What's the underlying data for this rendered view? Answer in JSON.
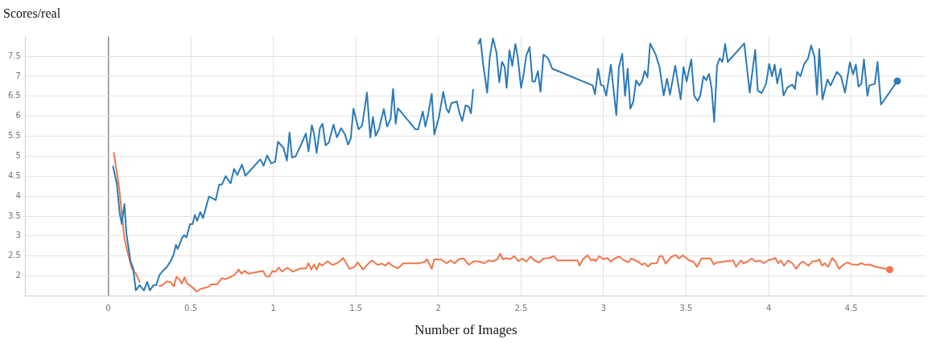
{
  "chart_data": {
    "type": "line",
    "title": "Scores/real",
    "xlabel": "Number of Images",
    "xlim": [
      -0.5,
      4.95
    ],
    "xticks": [
      0,
      0.5,
      1,
      1.5,
      2,
      2.5,
      3,
      3.5,
      4,
      4.5
    ],
    "ylim": [
      1.51,
      8.0
    ],
    "yticks": [
      2,
      2.5,
      3,
      3.5,
      4,
      4.5,
      5,
      5.5,
      6,
      6.5,
      7,
      7.5
    ],
    "grid": true,
    "legend": false,
    "marker": "none",
    "line_style": "solid",
    "series": [
      {
        "color": "#2a7ab9",
        "x": [
          0.028,
          0.052,
          0.069,
          0.082,
          0.098,
          0.11,
          0.134,
          0.151,
          0.167,
          0.19,
          0.216,
          0.236,
          0.252,
          0.274,
          0.29,
          0.311,
          0.331,
          0.356,
          0.38,
          0.397,
          0.41,
          0.421,
          0.446,
          0.459,
          0.474,
          0.495,
          0.511,
          0.525,
          0.539,
          0.557,
          0.574,
          0.61,
          0.639,
          0.651,
          0.672,
          0.689,
          0.711,
          0.741,
          0.762,
          0.782,
          0.81,
          0.831,
          0.921,
          0.941,
          0.962,
          0.987,
          1.011,
          1.028,
          1.061,
          1.082,
          1.098,
          1.113,
          1.134,
          1.167,
          1.197,
          1.213,
          1.233,
          1.246,
          1.262,
          1.282,
          1.298,
          1.316,
          1.336,
          1.364,
          1.385,
          1.41,
          1.434,
          1.452,
          1.469,
          1.485,
          1.516,
          1.538,
          1.567,
          1.587,
          1.603,
          1.62,
          1.639,
          1.669,
          1.689,
          1.71,
          1.725,
          1.741,
          1.754,
          1.861,
          1.877,
          1.905,
          1.921,
          1.938,
          1.959,
          1.975,
          2.003,
          2.029,
          2.049,
          2.062,
          2.079,
          2.098,
          2.111,
          2.128,
          2.144,
          2.164,
          2.184,
          2.197,
          2.21,
          2.221,
          2.241,
          2.254,
          2.27,
          2.295,
          2.311,
          2.33,
          2.352,
          2.368,
          2.385,
          2.401,
          2.413,
          2.43,
          2.447,
          2.466,
          2.48,
          2.5,
          2.516,
          2.532,
          2.552,
          2.569,
          2.584,
          2.602,
          2.618,
          2.636,
          2.664,
          2.689,
          2.934,
          2.948,
          2.967,
          2.984,
          3.0,
          3.016,
          3.044,
          3.077,
          3.093,
          3.113,
          3.13,
          3.146,
          3.162,
          3.179,
          3.197,
          3.216,
          3.233,
          3.249,
          3.266,
          3.282,
          3.315,
          3.339,
          3.364,
          3.384,
          3.402,
          3.434,
          3.467,
          3.484,
          3.503,
          3.531,
          3.549,
          3.569,
          3.585,
          3.605,
          3.621,
          3.638,
          3.654,
          3.67,
          3.687,
          3.703,
          3.72,
          3.736,
          3.752,
          3.852,
          3.885,
          3.918,
          3.934,
          3.957,
          3.984,
          4.003,
          4.02,
          4.036,
          4.052,
          4.072,
          4.09,
          4.113,
          4.143,
          4.159,
          4.172,
          4.192,
          4.216,
          4.238,
          4.257,
          4.277,
          4.293,
          4.306,
          4.326,
          4.356,
          4.375,
          4.413,
          4.438,
          4.462,
          4.492,
          4.511,
          4.528,
          4.544,
          4.561,
          4.577,
          4.598,
          4.61,
          4.643,
          4.659,
          4.68,
          4.779
        ],
        "values": [
          4.76,
          4.31,
          3.59,
          3.3,
          3.8,
          3.07,
          2.39,
          2.19,
          1.64,
          1.77,
          1.64,
          1.85,
          1.64,
          1.77,
          1.77,
          2.03,
          2.13,
          2.23,
          2.39,
          2.55,
          2.78,
          2.68,
          2.94,
          3.02,
          2.97,
          3.3,
          3.3,
          3.53,
          3.38,
          3.6,
          3.45,
          3.99,
          3.93,
          3.9,
          4.29,
          4.29,
          4.5,
          4.32,
          4.68,
          4.53,
          4.79,
          4.51,
          4.92,
          4.76,
          5.02,
          4.82,
          4.86,
          5.36,
          5.21,
          4.89,
          5.59,
          4.97,
          4.99,
          5.28,
          5.57,
          5.12,
          5.77,
          5.57,
          5.08,
          5.7,
          5.81,
          5.27,
          5.34,
          5.79,
          5.47,
          5.7,
          5.54,
          5.29,
          5.44,
          6.19,
          5.67,
          5.77,
          6.59,
          5.47,
          5.98,
          5.51,
          5.67,
          6.18,
          5.74,
          5.93,
          6.68,
          5.81,
          6.2,
          5.67,
          5.67,
          6.12,
          5.74,
          6.06,
          6.56,
          5.54,
          5.98,
          6.61,
          6.18,
          6.09,
          6.33,
          6.35,
          6.37,
          6.07,
          5.88,
          6.27,
          6.24,
          6.07,
          6.68,
          null,
          7.8,
          7.94,
          7.32,
          6.59,
          7.49,
          7.95,
          7.58,
          6.85,
          7.36,
          7.23,
          6.71,
          7.65,
          7.26,
          7.81,
          7.49,
          6.71,
          7.06,
          7.52,
          7.73,
          6.87,
          6.87,
          7.13,
          6.61,
          7.54,
          7.45,
          7.19,
          6.77,
          6.55,
          7.19,
          6.78,
          6.76,
          6.51,
          7.29,
          6.03,
          7.23,
          7.56,
          6.51,
          7.19,
          6.19,
          6.35,
          6.9,
          6.77,
          6.87,
          7.13,
          6.97,
          7.82,
          7.55,
          7.23,
          6.52,
          6.94,
          6.54,
          7.26,
          6.42,
          7.23,
          6.87,
          7.42,
          6.51,
          6.38,
          6.51,
          7.0,
          6.9,
          7.06,
          6.71,
          5.86,
          7.26,
          7.45,
          7.36,
          7.81,
          7.36,
          7.82,
          6.59,
          7.66,
          6.64,
          6.58,
          6.81,
          7.31,
          7.0,
          7.29,
          6.82,
          7.19,
          6.52,
          6.72,
          6.79,
          6.68,
          7.11,
          7.0,
          7.32,
          7.44,
          7.77,
          7.49,
          6.54,
          7.68,
          6.42,
          6.92,
          6.77,
          7.11,
          7.0,
          6.59,
          7.35,
          7.05,
          7.29,
          6.74,
          6.81,
          7.42,
          6.51,
          6.77,
          6.81,
          7.36,
          6.29,
          6.88
        ]
      },
      {
        "color": "#f0764b",
        "x": [
          0.033,
          0.066,
          0.098,
          0.118,
          0.143,
          0.167,
          0.192,
          0.208,
          0.29,
          0.307,
          0.328,
          0.356,
          0.38,
          0.397,
          0.413,
          0.43,
          0.446,
          0.462,
          0.479,
          0.503,
          0.536,
          0.561,
          0.602,
          0.626,
          0.659,
          0.689,
          0.708,
          0.741,
          0.766,
          0.79,
          0.807,
          0.826,
          0.848,
          0.938,
          0.954,
          0.974,
          0.995,
          1.011,
          1.033,
          1.052,
          1.085,
          1.118,
          1.164,
          1.197,
          1.213,
          1.23,
          1.246,
          1.262,
          1.279,
          1.295,
          1.328,
          1.357,
          1.385,
          1.402,
          1.423,
          1.443,
          1.462,
          1.492,
          1.511,
          1.544,
          1.57,
          1.598,
          1.631,
          1.656,
          1.68,
          1.697,
          1.72,
          1.754,
          1.787,
          1.885,
          1.918,
          1.931,
          1.959,
          1.975,
          2.016,
          2.049,
          2.074,
          2.098,
          2.123,
          2.152,
          2.184,
          2.213,
          2.249,
          2.279,
          2.303,
          2.331,
          2.357,
          2.374,
          2.39,
          2.41,
          2.434,
          2.459,
          2.484,
          2.508,
          2.533,
          2.557,
          2.582,
          2.61,
          2.636,
          2.672,
          2.7,
          2.72,
          2.843,
          2.854,
          2.875,
          2.903,
          2.925,
          2.941,
          2.952,
          2.974,
          2.998,
          3.023,
          3.044,
          3.061,
          3.093,
          3.126,
          3.151,
          3.167,
          3.208,
          3.233,
          3.249,
          3.27,
          3.29,
          3.323,
          3.339,
          3.356,
          3.375,
          3.413,
          3.438,
          3.457,
          3.479,
          3.52,
          3.544,
          3.566,
          3.593,
          3.621,
          3.648,
          3.667,
          3.687,
          3.785,
          3.802,
          3.831,
          3.848,
          3.872,
          3.897,
          3.921,
          3.946,
          3.97,
          3.995,
          4.02,
          4.041,
          4.057,
          4.074,
          4.093,
          4.118,
          4.143,
          4.167,
          4.192,
          4.208,
          4.241,
          4.266,
          4.29,
          4.307,
          4.323,
          4.339,
          4.359,
          4.385,
          4.405,
          4.425,
          4.451,
          4.479,
          4.503,
          4.536,
          4.561,
          4.582,
          4.61,
          4.643,
          4.733
        ],
        "values": [
          5.1,
          4.21,
          2.94,
          2.58,
          2.19,
          2.06,
          1.84,
          null,
          null,
          1.74,
          1.77,
          1.87,
          1.84,
          1.74,
          1.98,
          1.92,
          1.81,
          1.97,
          1.81,
          1.74,
          1.61,
          1.68,
          1.72,
          1.79,
          1.79,
          1.95,
          1.92,
          1.98,
          2.03,
          2.16,
          2.06,
          2.13,
          2.06,
          2.13,
          2.0,
          1.98,
          2.13,
          2.1,
          2.21,
          2.11,
          2.21,
          2.11,
          2.19,
          2.19,
          2.32,
          2.16,
          2.29,
          2.16,
          2.32,
          2.26,
          2.37,
          2.28,
          2.32,
          2.37,
          2.45,
          2.31,
          2.18,
          2.23,
          2.34,
          2.16,
          2.29,
          2.39,
          2.28,
          2.31,
          2.26,
          2.34,
          2.26,
          2.19,
          2.32,
          2.32,
          2.36,
          2.42,
          2.18,
          2.42,
          2.41,
          2.32,
          2.39,
          2.32,
          2.42,
          2.44,
          2.28,
          2.37,
          2.36,
          2.32,
          2.39,
          2.37,
          2.42,
          2.56,
          2.42,
          2.45,
          2.42,
          2.5,
          2.37,
          2.44,
          2.36,
          2.49,
          2.39,
          2.34,
          2.44,
          2.45,
          2.5,
          2.39,
          2.39,
          2.26,
          2.42,
          2.52,
          2.39,
          2.42,
          2.37,
          2.5,
          2.42,
          2.45,
          2.36,
          2.42,
          2.49,
          2.39,
          2.34,
          2.44,
          2.36,
          2.28,
          2.32,
          2.24,
          2.32,
          2.32,
          2.5,
          2.5,
          2.31,
          2.49,
          2.52,
          2.44,
          2.52,
          2.39,
          2.36,
          2.23,
          2.44,
          2.44,
          2.44,
          2.29,
          2.34,
          2.39,
          2.23,
          2.39,
          2.32,
          2.36,
          2.44,
          2.36,
          2.39,
          2.32,
          2.39,
          2.42,
          2.45,
          2.32,
          2.39,
          2.26,
          2.39,
          2.32,
          2.18,
          2.32,
          2.36,
          2.26,
          2.37,
          2.37,
          2.42,
          2.26,
          2.32,
          2.23,
          2.45,
          2.36,
          2.18,
          2.28,
          2.34,
          2.29,
          2.28,
          2.32,
          2.28,
          2.29,
          2.24,
          2.16
        ]
      }
    ]
  }
}
